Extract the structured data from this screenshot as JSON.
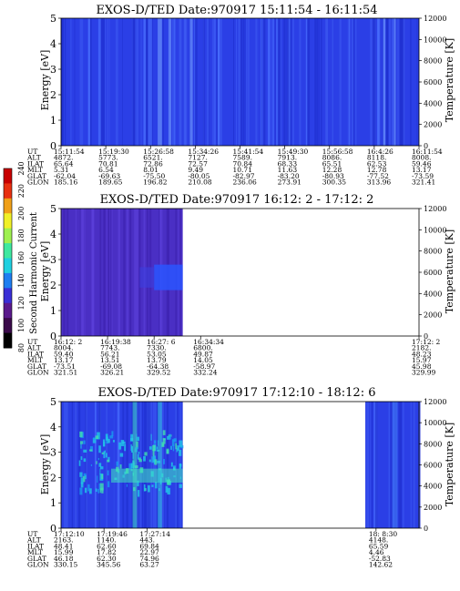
{
  "chart_data": [
    {
      "type": "heatmap",
      "title": "EXOS-D/TED   Date:970917  15:11:54 - 16:11:54",
      "ylabel": "Energy [eV]",
      "y2label": "Temperature [K]",
      "ylim": [
        0,
        5
      ],
      "y2lim": [
        0,
        12000
      ],
      "yticks": [
        "0",
        "1",
        "2",
        "3",
        "4",
        "5"
      ],
      "y2ticks": [
        "0",
        "2000",
        "4000",
        "6000",
        "8000",
        "10000",
        "12000"
      ],
      "x_fraction_with_data": [
        0,
        1
      ],
      "dominant_color": "#2b3fe6",
      "row_labels": [
        "UT",
        "ALT",
        "ILAT",
        "MLT",
        "GLAT",
        "GLON"
      ],
      "columns": [
        [
          "15:11:54",
          "4872.",
          "65.64",
          "5.31",
          "-62.04",
          "185.16"
        ],
        [
          "15:19:30",
          "5773.",
          "70.81",
          "6.54",
          "-69.63",
          "189.65"
        ],
        [
          "15:26:58",
          "6521.",
          "72.86",
          "8.01",
          "-75.50",
          "196.82"
        ],
        [
          "15:34:26",
          "7127.",
          "72.57",
          "9.49",
          "-80.05",
          "210.08"
        ],
        [
          "15:41:54",
          "7589.",
          "70.84",
          "10.71",
          "-82.97",
          "236.06"
        ],
        [
          "15:49:30",
          "7913.",
          "68.33",
          "11.63",
          "-83.20",
          "273.91"
        ],
        [
          "15:56:58",
          "8086.",
          "65.51",
          "12.28",
          "-80.93",
          "300.35"
        ],
        [
          "16:4:26",
          "8118.",
          "62.53",
          "12.78",
          "-77.52",
          "313.96"
        ],
        [
          "16:11:54",
          "8008.",
          "59.46",
          "13.17",
          "-73.59",
          "321.41"
        ]
      ]
    },
    {
      "type": "heatmap",
      "title": "EXOS-D/TED   Date:970917  16:12: 2 - 17:12: 2",
      "ylabel": "Energy [eV]",
      "y2label": "Temperature [K]",
      "ylim": [
        0,
        5
      ],
      "y2lim": [
        0,
        12000
      ],
      "yticks": [
        "0",
        "1",
        "2",
        "3",
        "4",
        "5"
      ],
      "y2ticks": [
        "0",
        "2000",
        "4000",
        "6000",
        "8000",
        "10000",
        "12000"
      ],
      "x_fraction_with_data": [
        0,
        0.34
      ],
      "dominant_color": "#4a2fc4",
      "row_labels": [
        "UT",
        "ALT",
        "ILAT",
        "MLT",
        "GLAT",
        "GLON"
      ],
      "columns": [
        [
          "16:12: 2",
          "8004.",
          "59.40",
          "13.17",
          "-73.51",
          "321.51"
        ],
        [
          "16:19:38",
          "7743.",
          "56.21",
          "13.51",
          "-69.08",
          "326.21"
        ],
        [
          "16:27: 6",
          "7330.",
          "53.05",
          "13.79",
          "-64.38",
          "329.52"
        ],
        [
          "16:34:34",
          "6800.",
          "49.87",
          "14.05",
          "-58.97",
          "332.24"
        ],
        [
          "17:12: 2",
          "2182.",
          "48.23",
          "15.97",
          "45.98",
          "329.99"
        ]
      ]
    },
    {
      "type": "heatmap",
      "title": "EXOS-D/TED   Date:970917  17:12:10 - 18:12: 6",
      "ylabel": "Energy [eV]",
      "y2label": "Temperature [K]",
      "ylim": [
        0,
        5
      ],
      "y2lim": [
        0,
        12000
      ],
      "yticks": [
        "0",
        "1",
        "2",
        "3",
        "4",
        "5"
      ],
      "y2ticks": [
        "0",
        "2000",
        "4000",
        "6000",
        "8000",
        "10000",
        "12000"
      ],
      "x_fraction_with_data": [
        [
          0,
          0.34
        ],
        [
          0.85,
          1
        ]
      ],
      "dominant_color": "#2b3fe6",
      "row_labels": [
        "UT",
        "ALT",
        "ILAT",
        "MLT",
        "GLAT",
        "GLON"
      ],
      "columns": [
        [
          "17:12:10",
          "2163.",
          "48.41",
          "15.99",
          "46.18",
          "330.15"
        ],
        [
          "17:19:46",
          "1140.",
          "62.60",
          "17.82",
          "62.30",
          "345.56"
        ],
        [
          "17:27:14",
          "443.",
          "69.84",
          "22.97",
          "74.96",
          "63.27"
        ],
        [
          "18: 8:30",
          "4148.",
          "65.59",
          "4.46",
          "-52.83",
          "142.62"
        ]
      ]
    }
  ],
  "colorbar": {
    "label": "Second Harmonic Current",
    "ticks": [
      "80",
      "100",
      "120",
      "140",
      "160",
      "180",
      "200",
      "220",
      "240"
    ],
    "colors": [
      "#000000",
      "#3a0a4a",
      "#5a1a8c",
      "#3a2fd6",
      "#1e7ef0",
      "#1fd0e0",
      "#3fe8a0",
      "#9ff050",
      "#f0f028",
      "#f0a018",
      "#e83010",
      "#c80000"
    ]
  }
}
